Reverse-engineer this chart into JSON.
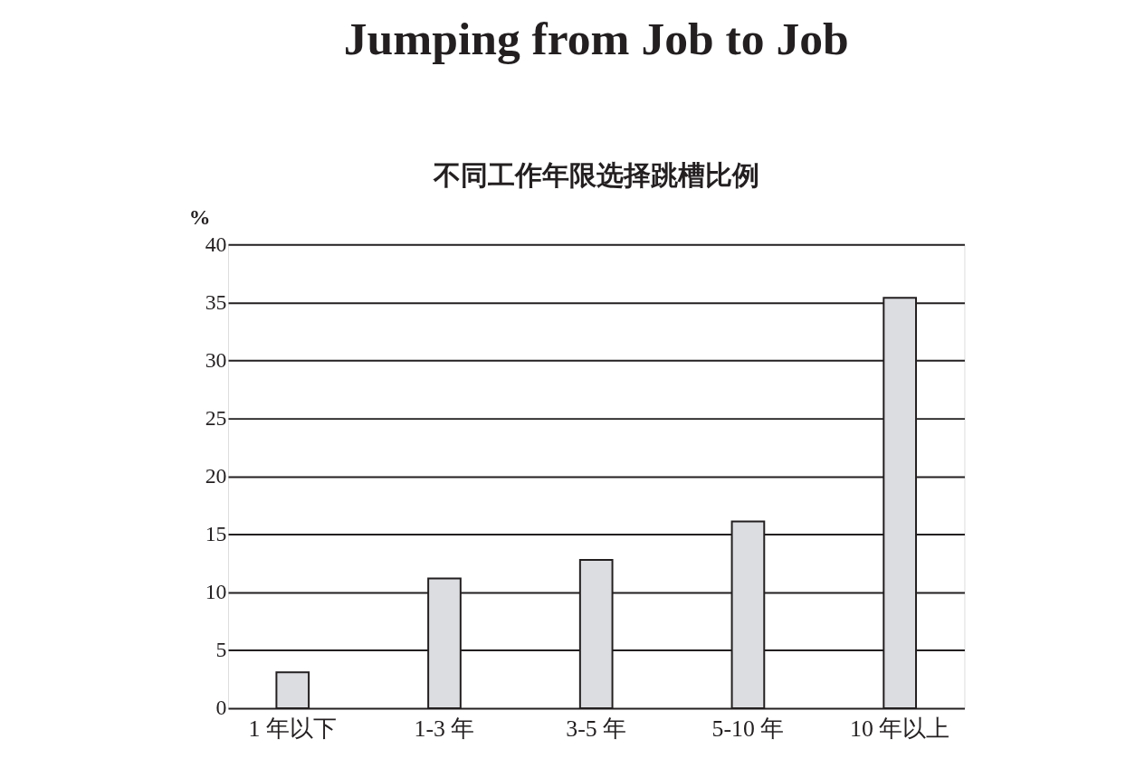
{
  "chart_data": {
    "type": "bar",
    "title": "Jumping from Job to Job",
    "subtitle": "不同工作年限选择跳槽比例",
    "ylabel": "%",
    "categories": [
      "1 年以下",
      "1-3 年",
      "3-5 年",
      "5-10 年",
      "10 年以上"
    ],
    "values": [
      3.1,
      11.2,
      12.8,
      16.1,
      35.4
    ],
    "color": "#dcdde0",
    "ylim": [
      0,
      40
    ],
    "yticks": [
      0,
      5,
      10,
      15,
      20,
      25,
      30,
      35,
      40
    ],
    "grid": "y"
  }
}
